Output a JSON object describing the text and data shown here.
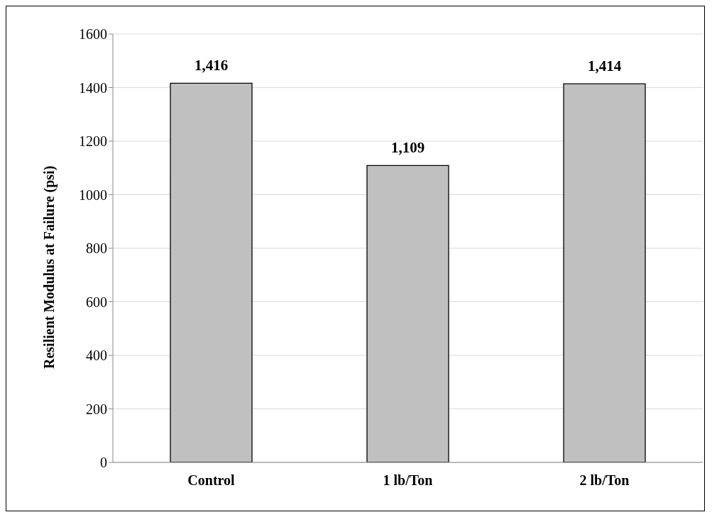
{
  "chart_data": {
    "type": "bar",
    "ylabel": "Resilient Modulus at Failure (psi)",
    "categories": [
      "Control",
      "1 lb/Ton",
      "2 lb/Ton"
    ],
    "values": [
      1416,
      1109,
      1414
    ],
    "value_labels": [
      "1,416",
      "1,109",
      "1,414"
    ],
    "color": "#c0c0c0",
    "ylim": [
      0,
      1600
    ],
    "yticks": [
      0,
      200,
      400,
      600,
      800,
      1000,
      1200,
      1400,
      1600
    ],
    "grid": "y",
    "legend": false
  }
}
